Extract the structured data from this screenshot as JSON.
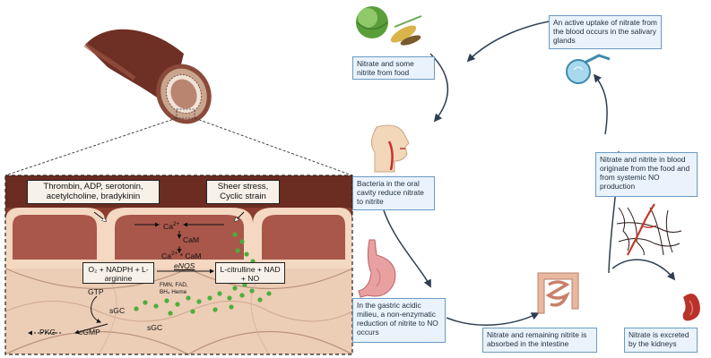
{
  "mechanism": {
    "stimuli_receptor": "Thrombin, ADP, serotonin, acetylcholine, bradykinin",
    "stimuli_mechanical": "Sheer stress, Cyclic strain",
    "ca": "Ca",
    "ca_sup": "2+",
    "cam": "CaM",
    "ca_cam": "Ca",
    "ca_cam_sup": "2+",
    "ca_cam_suffix": "* CaM",
    "substrates": "O₂ + NADPH + L-arginine",
    "enzyme": "eNOS",
    "products": "L-citrulline + NAD + NO",
    "cofactors_1": "FMN, FAD,",
    "cofactors_2": "BH₄ Heme",
    "gtp": "GTP",
    "sgc_1": "sGC",
    "sgc_2": "sGC",
    "pkg": "PKG",
    "cgmp": "cGMP"
  },
  "cycle": {
    "food": "Nitrate and some nitrite from food",
    "oral": "Bacteria in the oral cavity reduce nitrate to nitrite",
    "gastric": "In the gastric acidic milieu, a non-enzymatic reduction of nitrite to NO occurs",
    "intestine": "Nitrate and remaining nitrite is absorbed in the intestine",
    "kidney": "Nitrate is excreted by the kidneys",
    "blood": "Nitrate and nitrite in blood originate from the food and from systemic NO production",
    "salivary": "An active uptake of nitrate from the blood occurs in the salivary glands"
  },
  "colors": {
    "vessel": "#7a3b2e",
    "endothelium": "#f0c6a6",
    "no_dots": "#4cae3c",
    "label_fill": "#eaf3fb",
    "label_border": "#6b9ac4",
    "cycle_arrow": "#2f3f52"
  },
  "icons": [
    "blood-vessel-icon",
    "vegetables-icon",
    "head-profile-icon",
    "stomach-icon",
    "intestine-icon",
    "capillaries-icon",
    "kidney-icon",
    "salivary-gland-icon"
  ]
}
